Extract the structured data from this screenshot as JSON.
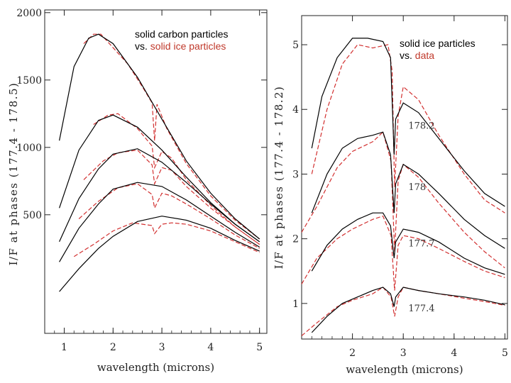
{
  "charts": [
    {
      "type": "line",
      "annotation": {
        "line1": "solid carbon particles",
        "line2_prefix": "vs. ",
        "line2_colored": "solid ice particles"
      },
      "xlabel": "wavelength (microns)",
      "ylabel": "I/F at phases (177.4 - 178.5)",
      "xlim": [
        0.6,
        5.15
      ],
      "ylim": [
        -380,
        2020
      ],
      "xticks": [
        1,
        2,
        3,
        4,
        5
      ],
      "yticks": [
        500,
        1000,
        1500,
        2000
      ],
      "ytick_labels": [
        "500",
        "1000",
        "1500",
        "2000"
      ],
      "colors": {
        "model": "#000000",
        "comparison": "#d23030"
      },
      "series": [
        {
          "solid": [
            [
              0.9,
              1050
            ],
            [
              1.2,
              1600
            ],
            [
              1.5,
              1810
            ],
            [
              1.7,
              1840
            ],
            [
              2.0,
              1770
            ],
            [
              2.5,
              1520
            ],
            [
              3.0,
              1210
            ],
            [
              3.5,
              900
            ],
            [
              4.0,
              660
            ],
            [
              4.5,
              470
            ],
            [
              5.0,
              320
            ]
          ],
          "dashed": [
            [
              1.4,
              1770
            ],
            [
              1.6,
              1840
            ],
            [
              1.75,
              1840
            ],
            [
              2.0,
              1740
            ],
            [
              2.3,
              1620
            ],
            [
              2.6,
              1450
            ],
            [
              2.8,
              1330
            ],
            [
              2.85,
              1050
            ],
            [
              2.9,
              1320
            ],
            [
              3.1,
              1140
            ],
            [
              3.5,
              880
            ],
            [
              4.0,
              640
            ],
            [
              4.5,
              460
            ],
            [
              5.0,
              320
            ]
          ]
        },
        {
          "solid": [
            [
              0.9,
              550
            ],
            [
              1.3,
              980
            ],
            [
              1.7,
              1200
            ],
            [
              2.0,
              1240
            ],
            [
              2.5,
              1150
            ],
            [
              3.0,
              980
            ],
            [
              3.5,
              780
            ],
            [
              4.0,
              590
            ],
            [
              4.5,
              430
            ],
            [
              5.0,
              300
            ]
          ],
          "dashed": [
            [
              1.6,
              1170
            ],
            [
              1.9,
              1240
            ],
            [
              2.1,
              1250
            ],
            [
              2.5,
              1140
            ],
            [
              2.8,
              1010
            ],
            [
              2.85,
              850
            ],
            [
              3.0,
              970
            ],
            [
              3.2,
              920
            ],
            [
              3.5,
              760
            ],
            [
              4.0,
              570
            ],
            [
              4.5,
              410
            ],
            [
              5.0,
              280
            ]
          ]
        },
        {
          "solid": [
            [
              0.9,
              300
            ],
            [
              1.3,
              620
            ],
            [
              1.7,
              840
            ],
            [
              2.0,
              950
            ],
            [
              2.5,
              990
            ],
            [
              3.0,
              890
            ],
            [
              3.5,
              740
            ],
            [
              4.0,
              580
            ],
            [
              4.5,
              430
            ],
            [
              5.0,
              300
            ]
          ],
          "dashed": [
            [
              1.4,
              760
            ],
            [
              1.8,
              900
            ],
            [
              2.1,
              960
            ],
            [
              2.5,
              980
            ],
            [
              2.8,
              870
            ],
            [
              2.85,
              730
            ],
            [
              3.0,
              850
            ],
            [
              3.2,
              830
            ],
            [
              3.5,
              710
            ],
            [
              4.0,
              550
            ],
            [
              4.5,
              410
            ],
            [
              5.0,
              280
            ]
          ]
        },
        {
          "solid": [
            [
              0.9,
              150
            ],
            [
              1.3,
              400
            ],
            [
              1.7,
              580
            ],
            [
              2.0,
              690
            ],
            [
              2.5,
              740
            ],
            [
              3.0,
              710
            ],
            [
              3.5,
              610
            ],
            [
              4.0,
              490
            ],
            [
              4.5,
              370
            ],
            [
              5.0,
              260
            ]
          ],
          "dashed": [
            [
              1.3,
              470
            ],
            [
              1.7,
              600
            ],
            [
              2.1,
              700
            ],
            [
              2.5,
              730
            ],
            [
              2.8,
              650
            ],
            [
              2.85,
              550
            ],
            [
              3.0,
              660
            ],
            [
              3.2,
              640
            ],
            [
              3.5,
              580
            ],
            [
              4.0,
              470
            ],
            [
              4.5,
              350
            ],
            [
              5.0,
              250
            ]
          ]
        },
        {
          "solid": [
            [
              0.9,
              -70
            ],
            [
              1.3,
              100
            ],
            [
              1.7,
              250
            ],
            [
              2.0,
              340
            ],
            [
              2.5,
              450
            ],
            [
              3.0,
              490
            ],
            [
              3.5,
              460
            ],
            [
              4.0,
              400
            ],
            [
              4.5,
              310
            ],
            [
              5.0,
              230
            ]
          ],
          "dashed": [
            [
              1.2,
              190
            ],
            [
              1.6,
              280
            ],
            [
              2.0,
              380
            ],
            [
              2.4,
              440
            ],
            [
              2.8,
              420
            ],
            [
              2.85,
              360
            ],
            [
              3.0,
              430
            ],
            [
              3.2,
              440
            ],
            [
              3.5,
              430
            ],
            [
              4.0,
              380
            ],
            [
              4.5,
              300
            ],
            [
              5.0,
              220
            ]
          ]
        }
      ]
    },
    {
      "type": "line",
      "annotation": {
        "line1": "solid ice particles",
        "line2_prefix": "vs. ",
        "line2_colored": "data"
      },
      "xlabel": "wavelength (microns)",
      "ylabel": "I/F at phases (177.4 - 178.2)",
      "xlim": [
        1.0,
        5.05
      ],
      "ylim": [
        0.45,
        5.45
      ],
      "xticks": [
        2,
        3,
        4,
        5
      ],
      "yticks": [
        1,
        2,
        3,
        4,
        5
      ],
      "ytick_labels": [
        "1",
        "2",
        "3",
        "4",
        "5"
      ],
      "colors": {
        "model": "#000000",
        "data": "#d23030"
      },
      "series": [
        {
          "label": "178.2",
          "label_at": [
            3.1,
            3.7
          ],
          "solid": [
            [
              1.2,
              3.4
            ],
            [
              1.4,
              4.2
            ],
            [
              1.7,
              4.8
            ],
            [
              2.0,
              5.1
            ],
            [
              2.3,
              5.1
            ],
            [
              2.6,
              5.05
            ],
            [
              2.75,
              4.8
            ],
            [
              2.82,
              3.3
            ],
            [
              2.85,
              3.85
            ],
            [
              3.0,
              4.1
            ],
            [
              3.3,
              3.95
            ],
            [
              3.7,
              3.55
            ],
            [
              4.2,
              3.05
            ],
            [
              4.6,
              2.7
            ],
            [
              5.0,
              2.5
            ]
          ],
          "dashed": [
            [
              1.2,
              3.0
            ],
            [
              1.5,
              4.0
            ],
            [
              1.8,
              4.7
            ],
            [
              2.1,
              5.0
            ],
            [
              2.4,
              4.95
            ],
            [
              2.7,
              5.0
            ],
            [
              2.78,
              4.6
            ],
            [
              2.83,
              2.8
            ],
            [
              2.9,
              3.9
            ],
            [
              3.0,
              4.35
            ],
            [
              3.3,
              4.15
            ],
            [
              3.7,
              3.6
            ],
            [
              4.2,
              3.0
            ],
            [
              4.6,
              2.6
            ],
            [
              5.0,
              2.4
            ]
          ]
        },
        {
          "label": "178",
          "label_at": [
            3.1,
            2.75
          ],
          "solid": [
            [
              1.2,
              2.4
            ],
            [
              1.5,
              3.0
            ],
            [
              1.8,
              3.4
            ],
            [
              2.1,
              3.55
            ],
            [
              2.4,
              3.6
            ],
            [
              2.6,
              3.65
            ],
            [
              2.75,
              3.3
            ],
            [
              2.82,
              2.4
            ],
            [
              2.85,
              2.85
            ],
            [
              3.0,
              3.15
            ],
            [
              3.3,
              3.0
            ],
            [
              3.7,
              2.7
            ],
            [
              4.2,
              2.3
            ],
            [
              4.6,
              2.05
            ],
            [
              5.0,
              1.85
            ]
          ],
          "dashed": [
            [
              1.0,
              2.1
            ],
            [
              1.3,
              2.5
            ],
            [
              1.7,
              3.1
            ],
            [
              2.0,
              3.35
            ],
            [
              2.4,
              3.5
            ],
            [
              2.6,
              3.65
            ],
            [
              2.76,
              3.2
            ],
            [
              2.83,
              1.8
            ],
            [
              2.9,
              2.9
            ],
            [
              3.0,
              3.15
            ],
            [
              3.3,
              2.95
            ],
            [
              3.7,
              2.55
            ],
            [
              4.2,
              2.1
            ],
            [
              4.6,
              1.8
            ],
            [
              5.0,
              1.55
            ]
          ]
        },
        {
          "label": "177.7",
          "label_at": [
            3.1,
            1.88
          ],
          "solid": [
            [
              1.2,
              1.5
            ],
            [
              1.5,
              1.9
            ],
            [
              1.8,
              2.15
            ],
            [
              2.1,
              2.3
            ],
            [
              2.4,
              2.4
            ],
            [
              2.6,
              2.4
            ],
            [
              2.75,
              2.2
            ],
            [
              2.82,
              1.7
            ],
            [
              2.85,
              1.95
            ],
            [
              3.0,
              2.15
            ],
            [
              3.3,
              2.1
            ],
            [
              3.7,
              1.95
            ],
            [
              4.2,
              1.7
            ],
            [
              4.6,
              1.55
            ],
            [
              5.0,
              1.45
            ]
          ],
          "dashed": [
            [
              1.0,
              1.3
            ],
            [
              1.3,
              1.7
            ],
            [
              1.7,
              2.0
            ],
            [
              2.0,
              2.15
            ],
            [
              2.4,
              2.3
            ],
            [
              2.6,
              2.35
            ],
            [
              2.76,
              2.05
            ],
            [
              2.83,
              1.2
            ],
            [
              2.9,
              1.9
            ],
            [
              3.0,
              2.05
            ],
            [
              3.3,
              2.0
            ],
            [
              3.7,
              1.85
            ],
            [
              4.2,
              1.65
            ],
            [
              4.6,
              1.5
            ],
            [
              5.0,
              1.4
            ]
          ]
        },
        {
          "label": "177.4",
          "label_at": [
            3.1,
            0.88
          ],
          "solid": [
            [
              1.2,
              0.55
            ],
            [
              1.5,
              0.8
            ],
            [
              1.8,
              1.0
            ],
            [
              2.1,
              1.1
            ],
            [
              2.4,
              1.2
            ],
            [
              2.6,
              1.25
            ],
            [
              2.75,
              1.15
            ],
            [
              2.82,
              0.95
            ],
            [
              2.85,
              1.1
            ],
            [
              3.0,
              1.25
            ],
            [
              3.3,
              1.2
            ],
            [
              3.7,
              1.15
            ],
            [
              4.2,
              1.1
            ],
            [
              4.6,
              1.05
            ],
            [
              5.0,
              0.98
            ]
          ],
          "dashed": [
            [
              1.0,
              0.5
            ],
            [
              1.3,
              0.7
            ],
            [
              1.7,
              0.95
            ],
            [
              2.0,
              1.05
            ],
            [
              2.4,
              1.15
            ],
            [
              2.6,
              1.25
            ],
            [
              2.76,
              1.1
            ],
            [
              2.83,
              0.8
            ],
            [
              2.9,
              1.1
            ],
            [
              3.0,
              1.25
            ],
            [
              3.3,
              1.2
            ],
            [
              3.7,
              1.15
            ],
            [
              4.2,
              1.08
            ],
            [
              4.6,
              1.03
            ],
            [
              5.0,
              0.97
            ]
          ]
        }
      ]
    }
  ]
}
